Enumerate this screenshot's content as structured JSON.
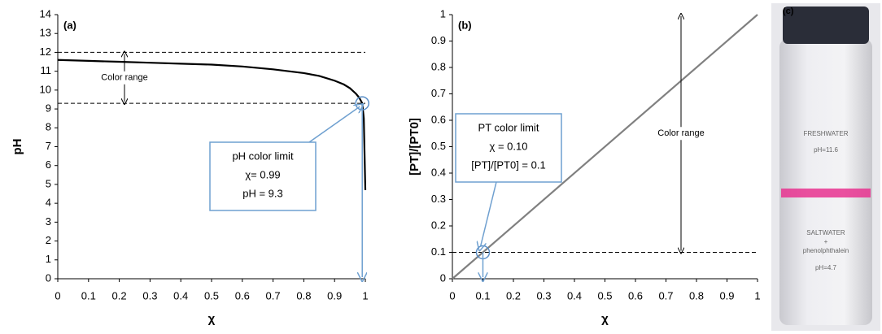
{
  "chart_data": [
    {
      "type": "line",
      "panel_label": "(a)",
      "xlabel": "χ",
      "ylabel": "pH",
      "xlim": [
        0,
        1
      ],
      "xticks": [
        0,
        0.1,
        0.2,
        0.3,
        0.4,
        0.5,
        0.6,
        0.7,
        0.8,
        0.9,
        1
      ],
      "ylim": [
        0,
        14
      ],
      "yticks": [
        0,
        1,
        2,
        3,
        4,
        5,
        6,
        7,
        8,
        9,
        10,
        11,
        12,
        13,
        14
      ],
      "series": [
        {
          "color": "#000000",
          "x": [
            0,
            0.1,
            0.2,
            0.3,
            0.4,
            0.5,
            0.6,
            0.7,
            0.8,
            0.85,
            0.9,
            0.93,
            0.95,
            0.97,
            0.98,
            0.99,
            0.995,
            1
          ],
          "values": [
            11.6,
            11.55,
            11.5,
            11.45,
            11.4,
            11.35,
            11.25,
            11.1,
            10.9,
            10.75,
            10.5,
            10.3,
            10.1,
            9.8,
            9.6,
            9.3,
            8.5,
            4.7
          ]
        }
      ],
      "hlines": [
        12,
        9.3
      ],
      "limit_point": [
        0.99,
        9.3
      ],
      "range_label": "Color range",
      "limit_box": [
        "pH color limit",
        "χ= 0.99",
        "pH = 9.3"
      ]
    },
    {
      "type": "line",
      "panel_label": "(b)",
      "xlabel": "χ",
      "ylabel": "[PT]/[PT0]",
      "xlim": [
        0,
        1
      ],
      "xticks": [
        0,
        0.1,
        0.2,
        0.3,
        0.4,
        0.5,
        0.6,
        0.7,
        0.8,
        0.9,
        1
      ],
      "ylim": [
        0,
        1
      ],
      "yticks": [
        0,
        0.1,
        0.2,
        0.3,
        0.4,
        0.5,
        0.6,
        0.7,
        0.8,
        0.9,
        1
      ],
      "series": [
        {
          "color": "#808080",
          "x": [
            0,
            1
          ],
          "values": [
            0,
            1
          ]
        }
      ],
      "hlines": [
        0.1
      ],
      "limit_point": [
        0.1,
        0.1
      ],
      "range_label": "Color range",
      "limit_box": [
        "PT color limit",
        "χ = 0.10",
        "[PT]/[PT0] = 0.1"
      ]
    }
  ],
  "photo": {
    "panel_label": "(c)",
    "upper_label": "FRESHWATER",
    "upper_ph": "pH=11.6",
    "lower_label": [
      "SALTWATER",
      "+",
      "phenolphthalein"
    ],
    "lower_ph": "pH=4.7"
  }
}
